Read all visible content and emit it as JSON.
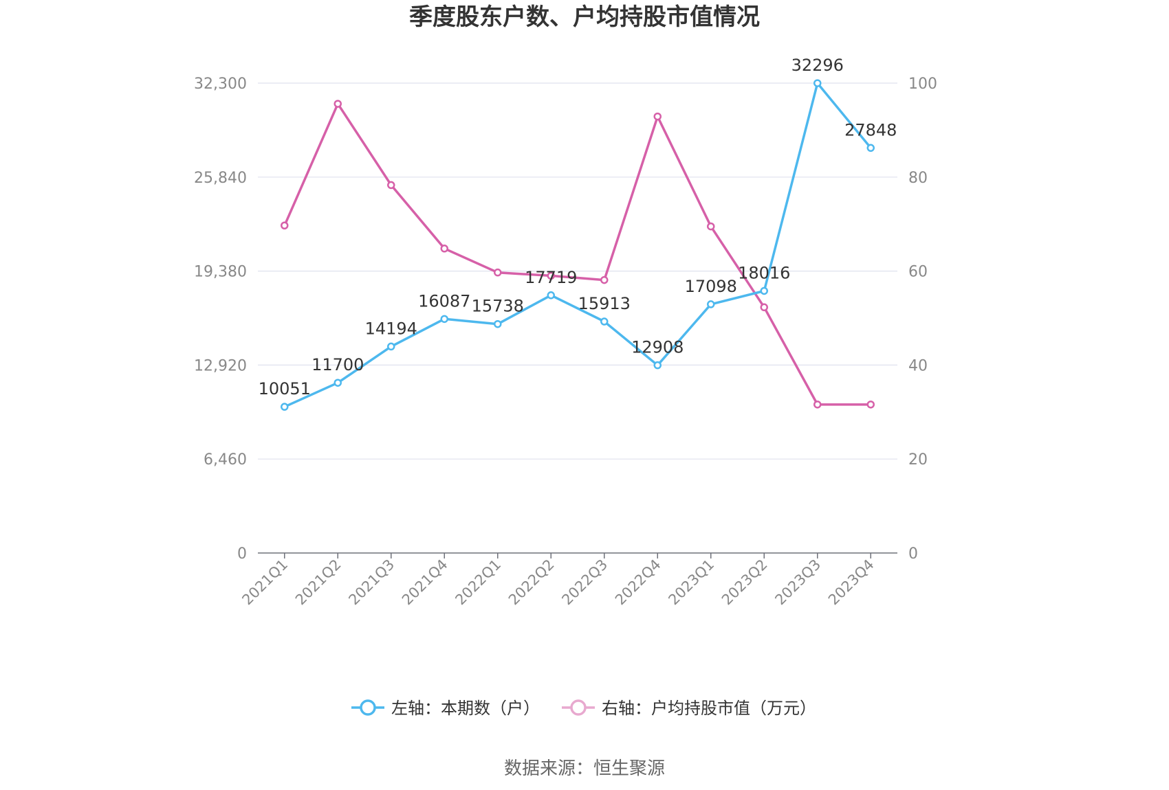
{
  "chart_data": {
    "type": "line",
    "title": "季度股东户数、户均持股市值情况",
    "categories": [
      "2021Q1",
      "2021Q2",
      "2021Q3",
      "2021Q4",
      "2022Q1",
      "2022Q2",
      "2022Q3",
      "2022Q4",
      "2023Q1",
      "2023Q2",
      "2023Q3",
      "2023Q4"
    ],
    "series": [
      {
        "name": "左轴：本期数（户）",
        "axis": "left",
        "color": "#4db8ee",
        "values": [
          10051,
          11700,
          14194,
          16087,
          15738,
          17719,
          15913,
          12908,
          17098,
          18016,
          32296,
          27848
        ],
        "labels": [
          "10051",
          "11700",
          "14194",
          "16087",
          "15738",
          "17719",
          "15913",
          "12908",
          "17098",
          "18016",
          "32296",
          "27848"
        ]
      },
      {
        "name": "右轴：户均持股市值（万元）",
        "axis": "right",
        "color": "#d660a8",
        "values": [
          69.7,
          95.6,
          78.3,
          64.8,
          59.7,
          59.0,
          58.1,
          92.9,
          69.5,
          52.3,
          31.6,
          31.6
        ]
      }
    ],
    "left_axis": {
      "ylim": [
        0,
        32300
      ],
      "ticks": [
        "0",
        "6,460",
        "12,920",
        "19,380",
        "25,840",
        "32,300"
      ]
    },
    "right_axis": {
      "ylim": [
        0,
        100
      ],
      "ticks": [
        "0",
        "20",
        "40",
        "60",
        "80",
        "100"
      ]
    },
    "grid": true,
    "legend_position": "bottom"
  },
  "source": "数据来源：恒生聚源"
}
